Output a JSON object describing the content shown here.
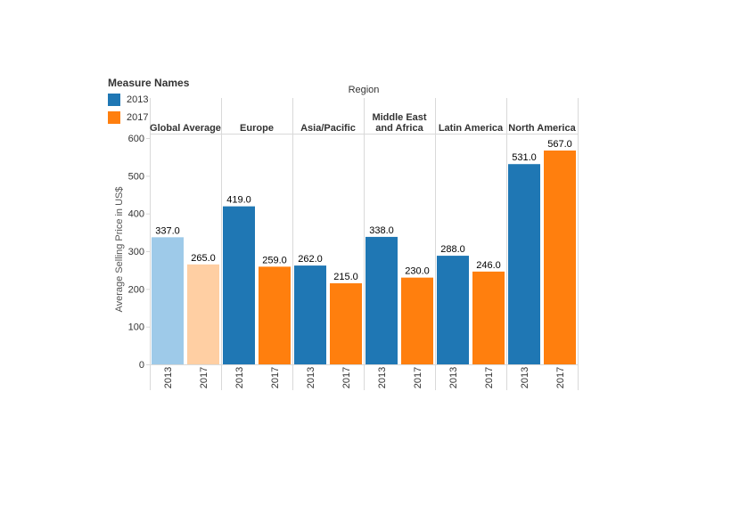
{
  "chart_data": {
    "type": "bar",
    "column_header": "Region",
    "ylabel": "Average Selling Price in US$",
    "ylim": [
      0,
      600
    ],
    "yticks": [
      0,
      100,
      200,
      300,
      400,
      500,
      600
    ],
    "regions": [
      "Global Average",
      "Europe",
      "Asia/Pacific",
      "Middle East\nand Africa",
      "Latin America",
      "North America"
    ],
    "series": [
      {
        "name": "2013",
        "values": [
          337.0,
          419.0,
          262.0,
          338.0,
          288.0,
          531.0
        ]
      },
      {
        "name": "2017",
        "values": [
          265.0,
          259.0,
          215.0,
          230.0,
          246.0,
          567.0
        ]
      }
    ],
    "value_labels": [
      [
        "337.0",
        "265.0"
      ],
      [
        "419.0",
        "259.0"
      ],
      [
        "262.0",
        "215.0"
      ],
      [
        "338.0",
        "230.0"
      ],
      [
        "288.0",
        "246.0"
      ],
      [
        "531.0",
        "567.0"
      ]
    ],
    "colors": {
      "2013": "#1f77b4",
      "2017": "#ff7f0e",
      "2013_highlight": "#9ecae9",
      "2017_highlight": "#ffcfa3",
      "grid": "#d9d9d9",
      "text": "#333333"
    },
    "highlighted_region": "Global Average"
  },
  "legend": {
    "title": "Measure Names",
    "items": [
      {
        "label": "2013",
        "color": "#1f77b4"
      },
      {
        "label": "2017",
        "color": "#ff7f0e"
      }
    ]
  }
}
